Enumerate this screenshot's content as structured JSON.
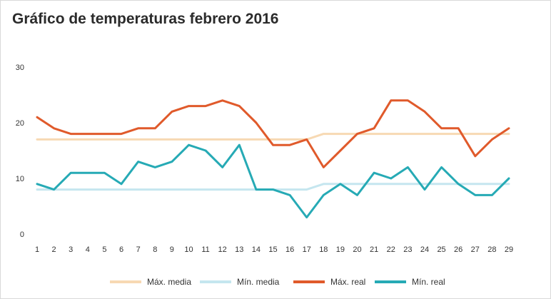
{
  "chart_data": {
    "type": "line",
    "title": "Gráfico de temperaturas febrero 2016",
    "xlabel": "",
    "ylabel": "",
    "x": [
      1,
      2,
      3,
      4,
      5,
      6,
      7,
      8,
      9,
      10,
      11,
      12,
      13,
      14,
      15,
      16,
      17,
      18,
      19,
      20,
      21,
      22,
      23,
      24,
      25,
      26,
      27,
      28,
      29
    ],
    "ylim": [
      0,
      30
    ],
    "yticks": [
      0,
      10,
      20,
      30
    ],
    "grid": false,
    "legend_position": "bottom",
    "series": [
      {
        "name": "Máx. media",
        "color": "#f7d9b3",
        "values": [
          17,
          17,
          17,
          17,
          17,
          17,
          17,
          17,
          17,
          17,
          17,
          17,
          17,
          17,
          17,
          17,
          17,
          18,
          18,
          18,
          18,
          18,
          18,
          18,
          18,
          18,
          18,
          18,
          18
        ]
      },
      {
        "name": "Mín. media",
        "color": "#c5e6ef",
        "values": [
          8,
          8,
          8,
          8,
          8,
          8,
          8,
          8,
          8,
          8,
          8,
          8,
          8,
          8,
          8,
          8,
          8,
          9,
          9,
          9,
          9,
          9,
          9,
          9,
          9,
          9,
          9,
          9,
          9
        ]
      },
      {
        "name": "Máx. real",
        "color": "#e05a2b",
        "values": [
          21,
          19,
          18,
          18,
          18,
          18,
          19,
          19,
          22,
          23,
          23,
          24,
          23,
          20,
          16,
          16,
          17,
          12,
          15,
          18,
          19,
          24,
          24,
          22,
          19,
          19,
          14,
          17,
          19
        ]
      },
      {
        "name": "Mín. real",
        "color": "#26aab5",
        "values": [
          9,
          8,
          11,
          11,
          11,
          9,
          13,
          12,
          13,
          16,
          15,
          12,
          16,
          8,
          8,
          7,
          3,
          7,
          9,
          7,
          11,
          10,
          12,
          8,
          12,
          9,
          7,
          7,
          10
        ]
      }
    ]
  }
}
